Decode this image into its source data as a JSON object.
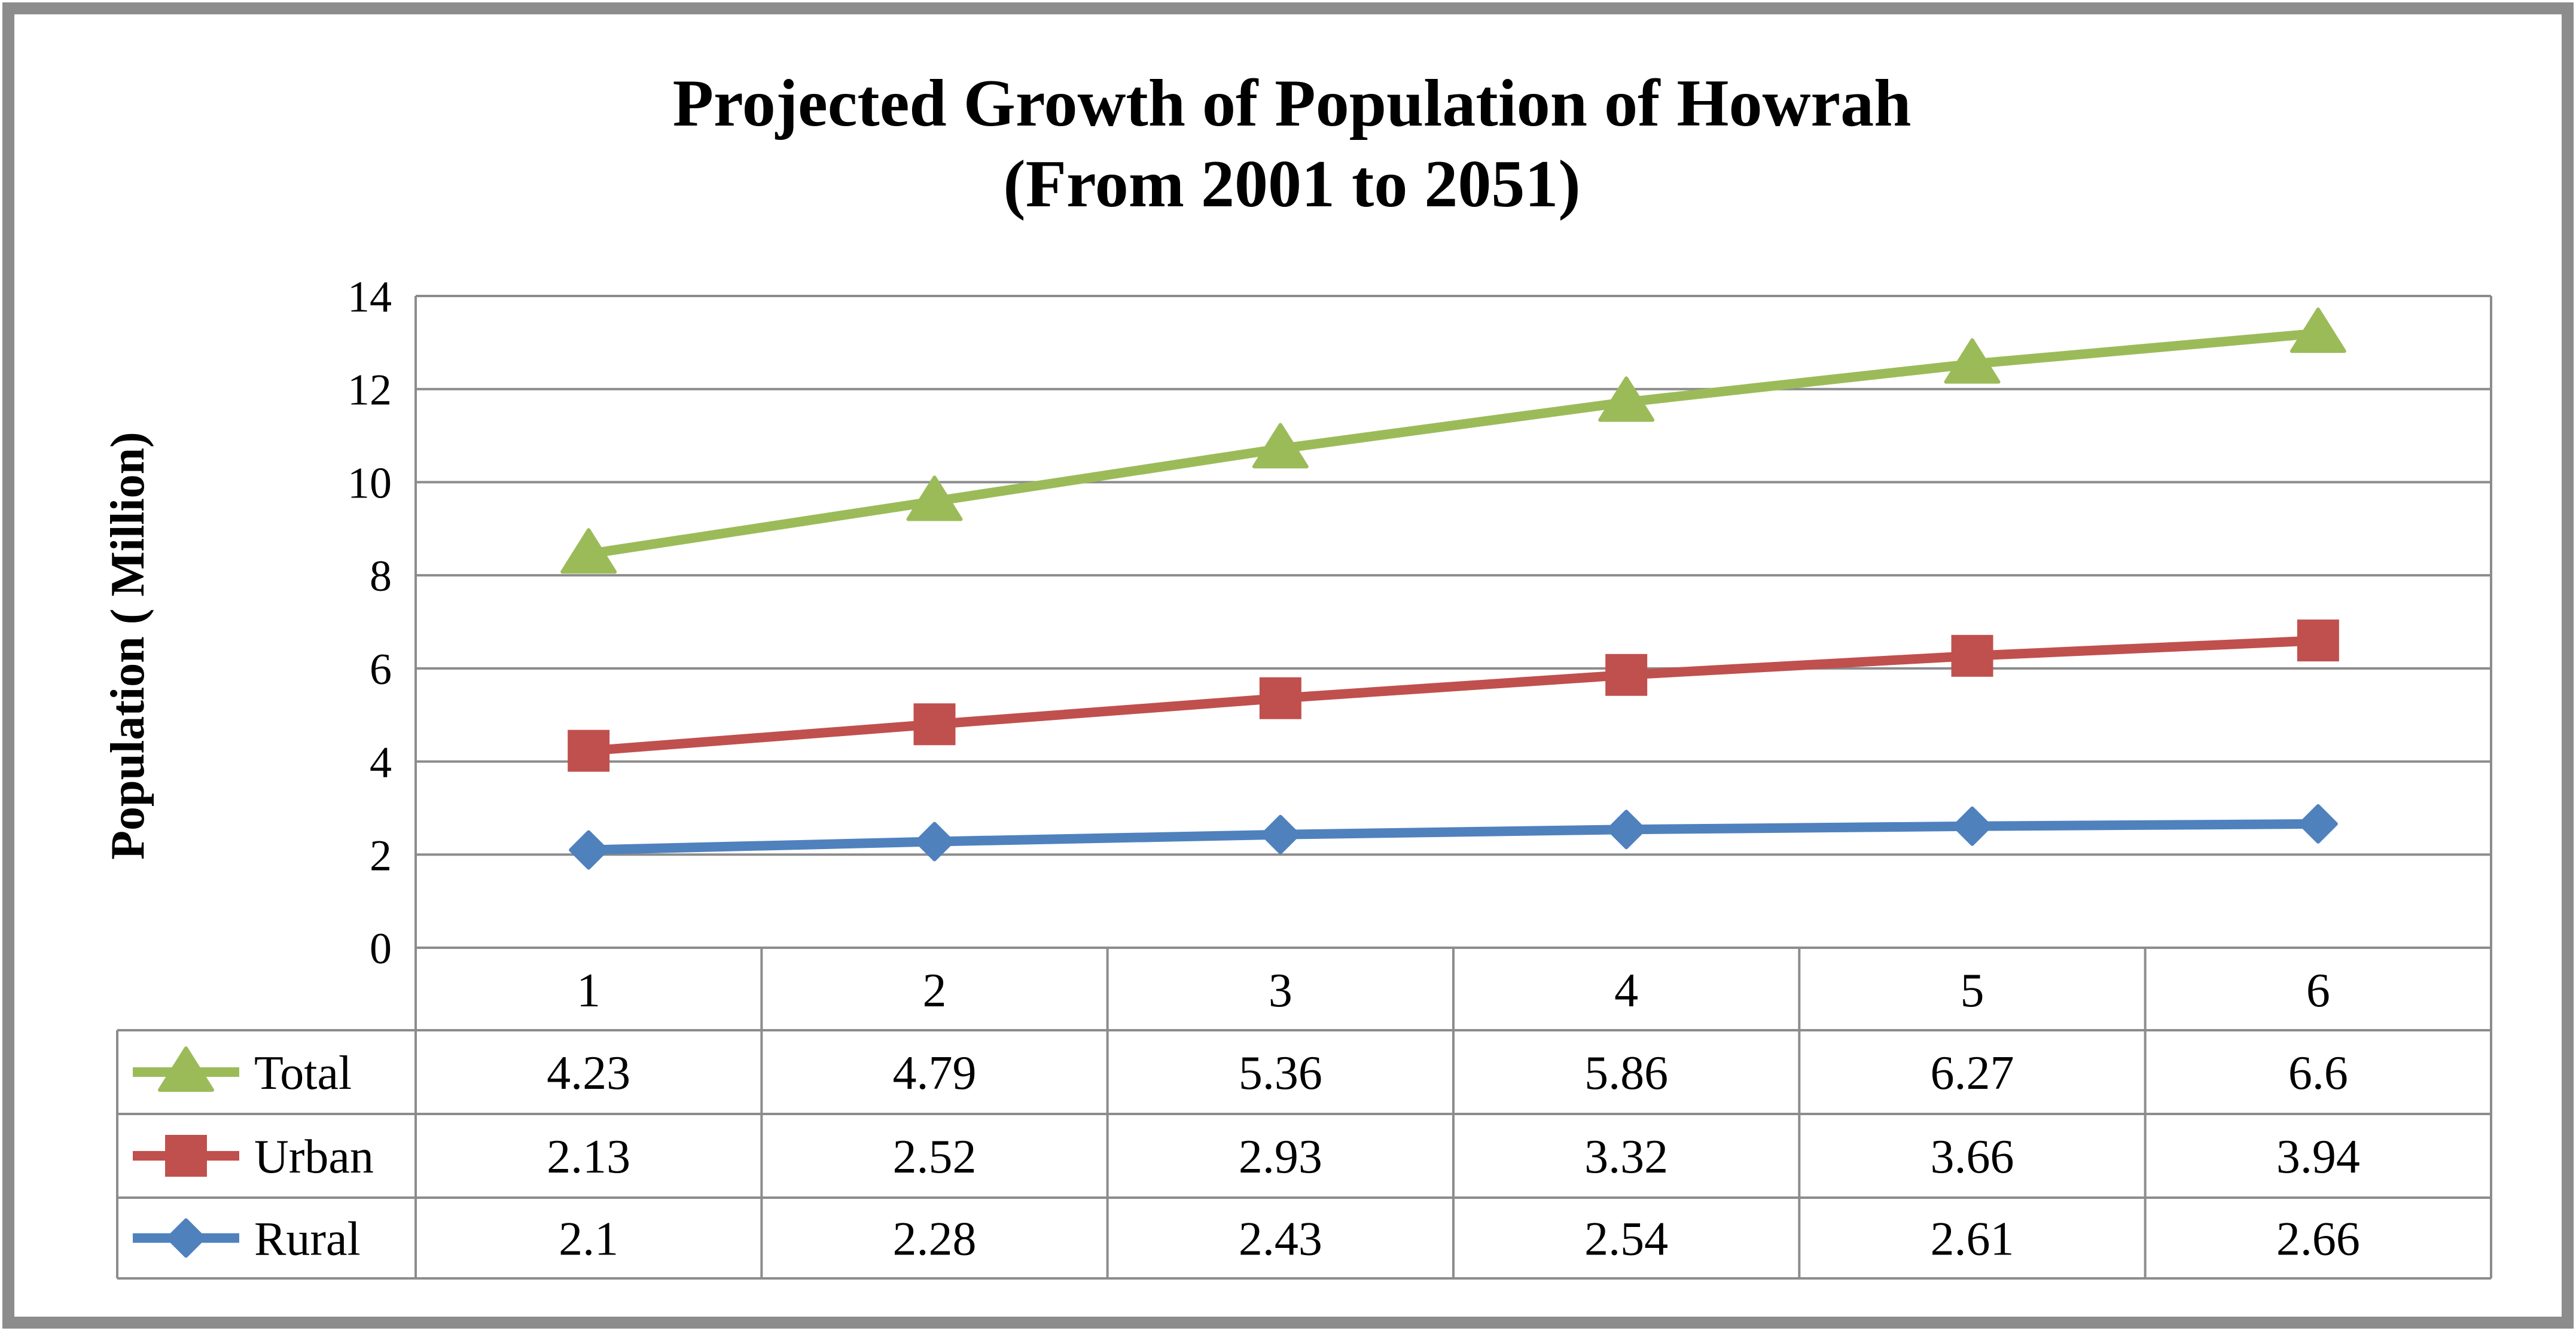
{
  "chart_data": {
    "type": "line",
    "title": "Projected Growth of Population of Howrah",
    "subtitle": "(From 2001 to 2051)",
    "xlabel": "",
    "ylabel": "Population ( Million)",
    "ylim": [
      0,
      14
    ],
    "yticks": [
      0,
      2,
      4,
      6,
      8,
      10,
      12,
      14
    ],
    "grid": true,
    "legend": "data-table-left",
    "categories": [
      "1",
      "2",
      "3",
      "4",
      "5",
      "6"
    ],
    "series": [
      {
        "name": "Total",
        "marker": "triangle",
        "color": "#9BBB59",
        "values": [
          4.23,
          4.79,
          5.36,
          5.86,
          6.27,
          6.6
        ],
        "plotted": [
          8.46,
          9.59,
          10.72,
          11.72,
          12.54,
          13.2
        ],
        "table_labels": [
          "4.23",
          "4.79",
          "5.36",
          "5.86",
          "6.27",
          "6.6"
        ]
      },
      {
        "name": "Urban",
        "marker": "square",
        "color": "#C0504D",
        "values": [
          2.13,
          2.52,
          2.93,
          3.32,
          3.66,
          3.94
        ],
        "plotted": [
          4.23,
          4.8,
          5.36,
          5.86,
          6.27,
          6.6
        ],
        "table_labels": [
          "2.13",
          "2.52",
          "2.93",
          "3.32",
          "3.66",
          "3.94"
        ]
      },
      {
        "name": "Rural",
        "marker": "diamond",
        "color": "#4F81BD",
        "values": [
          2.1,
          2.28,
          2.43,
          2.54,
          2.61,
          2.66
        ],
        "plotted": [
          2.1,
          2.28,
          2.43,
          2.54,
          2.61,
          2.66
        ],
        "table_labels": [
          "2.1",
          "2.28",
          "2.43",
          "2.54",
          "2.61",
          "2.66"
        ]
      }
    ]
  },
  "colors": {
    "frame": "#8C8C8C",
    "grid": "#8C8C8C",
    "text": "#000000"
  }
}
